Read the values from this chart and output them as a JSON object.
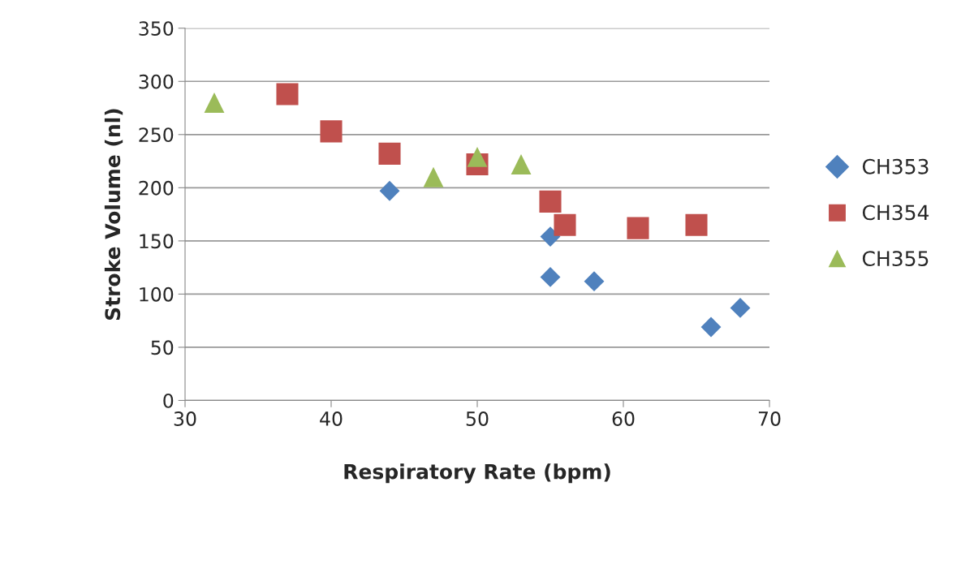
{
  "chart_data": {
    "type": "scatter",
    "xlabel": "Respiratory Rate (bpm)",
    "ylabel": "Stroke Volume (nl)",
    "xlim": [
      30,
      70
    ],
    "xticks": [
      30,
      40,
      50,
      60,
      70
    ],
    "ylim": [
      0,
      350
    ],
    "yticks": [
      0,
      50,
      100,
      150,
      200,
      250,
      300,
      350
    ],
    "grid": "y",
    "legend": "right",
    "series": [
      {
        "name": "CH353",
        "color": "#4f81bd",
        "marker": "diamond",
        "x": [
          44,
          55,
          55,
          58,
          66,
          68
        ],
        "values": [
          197,
          154,
          116,
          112,
          69,
          87
        ]
      },
      {
        "name": "CH354",
        "color": "#c0504d",
        "marker": "square",
        "x": [
          37,
          40,
          44,
          50,
          55,
          56,
          61,
          65
        ],
        "values": [
          288,
          253,
          232,
          222,
          187,
          165,
          162,
          165
        ]
      },
      {
        "name": "CH355",
        "color": "#9bbb59",
        "marker": "triangle",
        "x": [
          32,
          47,
          50,
          53
        ],
        "values": [
          280,
          210,
          229,
          222
        ]
      }
    ]
  }
}
